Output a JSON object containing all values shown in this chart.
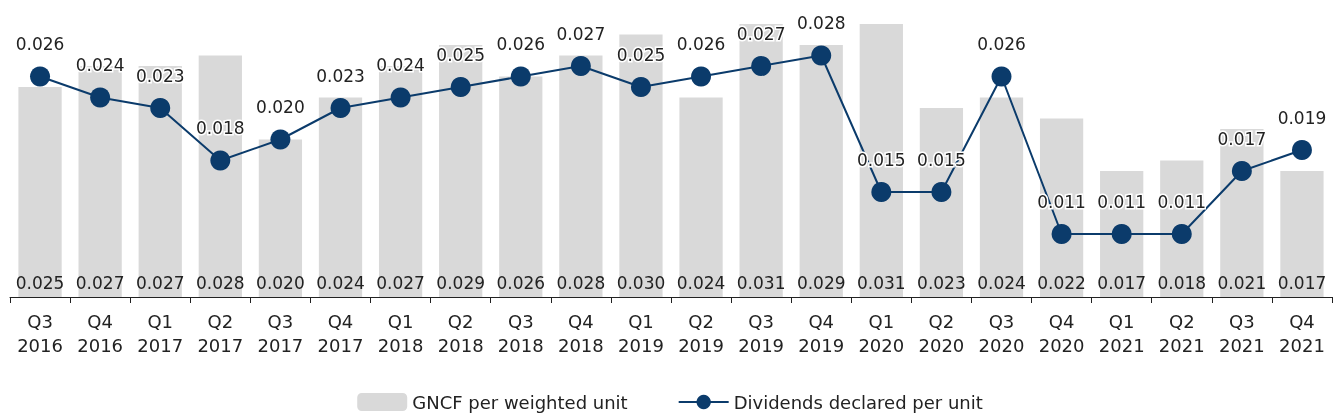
{
  "chart_data": {
    "type": "bar",
    "categories": [
      "Q3 2016",
      "Q4 2016",
      "Q1 2017",
      "Q2 2017",
      "Q3 2017",
      "Q4 2017",
      "Q1 2018",
      "Q2 2018",
      "Q3 2018",
      "Q4 2018",
      "Q1 2019",
      "Q2 2019",
      "Q3 2019",
      "Q4 2019",
      "Q1 2020",
      "Q2 2020",
      "Q3 2020",
      "Q4 2020",
      "Q1 2021",
      "Q2 2021",
      "Q3 2021",
      "Q4 2021"
    ],
    "series": [
      {
        "name": "GNCF per weighted unit",
        "color": "#d9d9d9",
        "values": [
          0.025,
          0.027,
          0.027,
          0.028,
          0.02,
          0.024,
          0.027,
          0.029,
          0.026,
          0.028,
          0.03,
          0.024,
          0.031,
          0.029,
          0.031,
          0.023,
          0.024,
          0.022,
          0.017,
          0.018,
          0.021,
          0.017
        ],
        "value_labels": [
          "0.025",
          "0.027",
          "0.027",
          "0.028",
          "0.020",
          "0.024",
          "0.027",
          "0.029",
          "0.026",
          "0.028",
          "0.030",
          "0.024",
          "0.031",
          "0.029",
          "0.031",
          "0.023",
          "0.024",
          "0.022",
          "0.017",
          "0.018",
          "0.021",
          "0.017"
        ]
      },
      {
        "name": "Dividends declared per unit",
        "type": "line",
        "color": "#0b3b6b",
        "values": [
          0.026,
          0.024,
          0.023,
          0.018,
          0.02,
          0.023,
          0.024,
          0.025,
          0.026,
          0.027,
          0.025,
          0.026,
          0.027,
          0.028,
          0.015,
          0.015,
          0.026,
          0.011,
          0.011,
          0.011,
          0.017,
          0.019
        ],
        "value_labels": [
          "0.026",
          "0.024",
          "0.023",
          "0.018",
          "0.020",
          "0.023",
          "0.024",
          "0.025",
          "0.026",
          "0.027",
          "0.025",
          "0.026",
          "0.027",
          "0.028",
          "0.015",
          "0.015",
          "0.026",
          "0.011",
          "0.011",
          "0.011",
          "0.017",
          "0.019"
        ]
      }
    ],
    "ylim": [
      0.005,
      0.031
    ],
    "tick_labels": "x",
    "legend": "bottom",
    "marker": "circle",
    "line_style": "solid"
  }
}
